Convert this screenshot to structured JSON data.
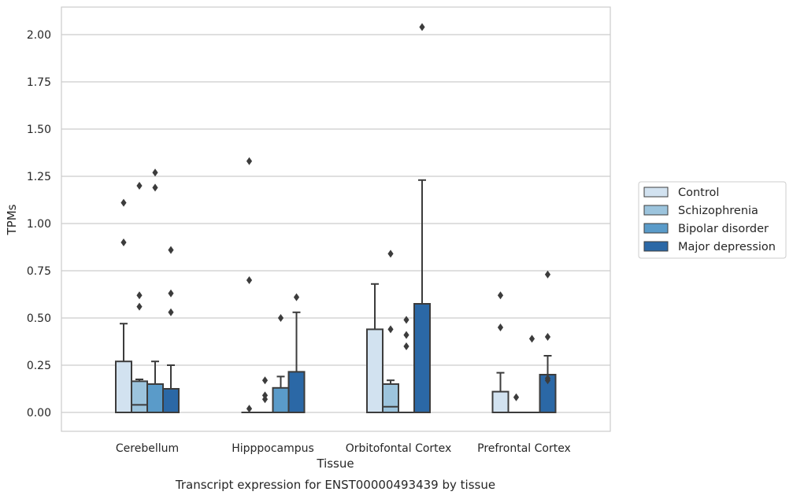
{
  "chart_data": {
    "type": "box",
    "title": "Transcript expression for ENST00000493439 by tissue",
    "xlabel": "Tissue",
    "ylabel": "TPMs",
    "ylim": [
      -0.1,
      2.15
    ],
    "yticks": [
      "0.00",
      "0.25",
      "0.50",
      "0.75",
      "1.00",
      "1.25",
      "1.50",
      "1.75",
      "2.00"
    ],
    "grid": "horizontal",
    "legend_position": "right",
    "categories": [
      "Cerebellum",
      "Hipppocampus",
      "Orbitofontal Cortex",
      "Prefrontal Cortex"
    ],
    "series": [
      {
        "name": "Control",
        "color": "#d2e2f0",
        "boxes": [
          {
            "q1": 0.0,
            "median": 0.0,
            "q3": 0.27,
            "whisker_low": 0.0,
            "whisker_high": 0.47,
            "outliers": [
              0.9,
              1.11
            ]
          },
          {
            "q1": 0.0,
            "median": 0.0,
            "q3": 0.0,
            "whisker_low": 0.0,
            "whisker_high": 0.0,
            "outliers": [
              0.02,
              0.7,
              1.33
            ]
          },
          {
            "q1": 0.0,
            "median": 0.0,
            "q3": 0.44,
            "whisker_low": 0.0,
            "whisker_high": 0.68,
            "outliers": []
          },
          {
            "q1": 0.0,
            "median": 0.0,
            "q3": 0.11,
            "whisker_low": 0.0,
            "whisker_high": 0.21,
            "outliers": [
              0.45,
              0.62
            ]
          }
        ]
      },
      {
        "name": "Schizophrenia",
        "color": "#9cc4dd",
        "boxes": [
          {
            "q1": 0.0,
            "median": 0.04,
            "q3": 0.165,
            "whisker_low": 0.0,
            "whisker_high": 0.175,
            "outliers": [
              0.56,
              0.62,
              1.2
            ]
          },
          {
            "q1": 0.0,
            "median": 0.0,
            "q3": 0.0,
            "whisker_low": 0.0,
            "whisker_high": 0.0,
            "outliers": [
              0.07,
              0.09,
              0.17
            ]
          },
          {
            "q1": 0.0,
            "median": 0.03,
            "q3": 0.15,
            "whisker_low": 0.0,
            "whisker_high": 0.17,
            "outliers": [
              0.44,
              0.84
            ]
          },
          {
            "q1": 0.0,
            "median": 0.0,
            "q3": 0.0,
            "whisker_low": 0.0,
            "whisker_high": 0.0,
            "outliers": [
              0.08
            ]
          }
        ]
      },
      {
        "name": "Bipolar disorder",
        "color": "#5a9bc9",
        "boxes": [
          {
            "q1": 0.0,
            "median": 0.0,
            "q3": 0.15,
            "whisker_low": 0.0,
            "whisker_high": 0.27,
            "outliers": [
              1.19,
              1.27
            ]
          },
          {
            "q1": 0.0,
            "median": 0.0,
            "q3": 0.13,
            "whisker_low": 0.0,
            "whisker_high": 0.19,
            "outliers": [
              0.5
            ]
          },
          {
            "q1": 0.0,
            "median": 0.0,
            "q3": 0.0,
            "whisker_low": 0.0,
            "whisker_high": 0.0,
            "outliers": [
              0.35,
              0.41,
              0.49
            ]
          },
          {
            "q1": 0.0,
            "median": 0.0,
            "q3": 0.0,
            "whisker_low": 0.0,
            "whisker_high": 0.0,
            "outliers": [
              0.39
            ]
          }
        ]
      },
      {
        "name": "Major depression",
        "color": "#2b68a6",
        "boxes": [
          {
            "q1": 0.0,
            "median": 0.0,
            "q3": 0.125,
            "whisker_low": 0.0,
            "whisker_high": 0.25,
            "outliers": [
              0.53,
              0.63,
              0.86
            ]
          },
          {
            "q1": 0.0,
            "median": 0.0,
            "q3": 0.215,
            "whisker_low": 0.0,
            "whisker_high": 0.53,
            "outliers": [
              0.61
            ]
          },
          {
            "q1": 0.0,
            "median": 0.0,
            "q3": 0.575,
            "whisker_low": 0.0,
            "whisker_high": 1.23,
            "outliers": [
              2.04
            ]
          },
          {
            "q1": 0.0,
            "median": 0.0,
            "q3": 0.2,
            "whisker_low": 0.0,
            "whisker_high": 0.3,
            "outliers": [
              0.17,
              0.18,
              0.4,
              0.73
            ]
          }
        ]
      }
    ]
  }
}
